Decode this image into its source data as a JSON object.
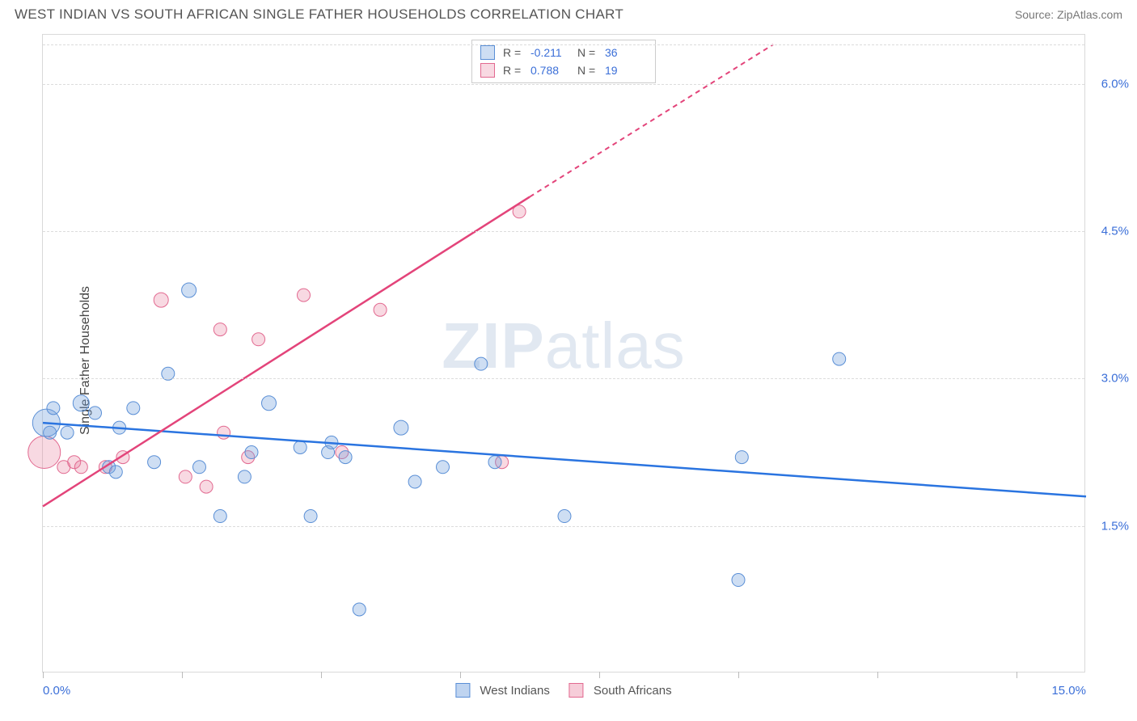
{
  "header": {
    "title": "WEST INDIAN VS SOUTH AFRICAN SINGLE FATHER HOUSEHOLDS CORRELATION CHART",
    "source": "Source: ZipAtlas.com"
  },
  "ylabel": "Single Father Households",
  "watermark": {
    "bold": "ZIP",
    "light": "atlas"
  },
  "chart": {
    "type": "scatter-regression",
    "xlim": [
      0,
      15
    ],
    "ylim": [
      0,
      6.5
    ],
    "xtick_positions": [
      0,
      2,
      4,
      6,
      8,
      10,
      12,
      14
    ],
    "xtick_labels": {
      "0": "0.0%",
      "15": "15.0%"
    },
    "ytick_values": [
      1.5,
      3.0,
      4.5,
      6.0
    ],
    "ytick_labels": [
      "1.5%",
      "3.0%",
      "4.5%",
      "6.0%"
    ],
    "grid_color": "#dcdcdc",
    "background_color": "#ffffff",
    "series": [
      {
        "name": "West Indians",
        "color_fill": "rgba(114,160,222,0.35)",
        "color_stroke": "#5a8fd6",
        "line_color": "#2a74e0",
        "R": "-0.211",
        "N": "36",
        "regression": {
          "x1": 0,
          "y1": 2.55,
          "x2": 15,
          "y2": 1.8
        },
        "points": [
          {
            "x": 0.05,
            "y": 2.55,
            "r": 17
          },
          {
            "x": 0.1,
            "y": 2.45,
            "r": 8
          },
          {
            "x": 0.15,
            "y": 2.7,
            "r": 8
          },
          {
            "x": 0.35,
            "y": 2.45,
            "r": 8
          },
          {
            "x": 0.55,
            "y": 2.75,
            "r": 10
          },
          {
            "x": 0.75,
            "y": 2.65,
            "r": 8
          },
          {
            "x": 0.95,
            "y": 2.1,
            "r": 8
          },
          {
            "x": 1.05,
            "y": 2.05,
            "r": 8
          },
          {
            "x": 1.1,
            "y": 2.5,
            "r": 8
          },
          {
            "x": 1.3,
            "y": 2.7,
            "r": 8
          },
          {
            "x": 1.6,
            "y": 2.15,
            "r": 8
          },
          {
            "x": 1.8,
            "y": 3.05,
            "r": 8
          },
          {
            "x": 2.1,
            "y": 3.9,
            "r": 9
          },
          {
            "x": 2.25,
            "y": 2.1,
            "r": 8
          },
          {
            "x": 2.55,
            "y": 1.6,
            "r": 8
          },
          {
            "x": 2.9,
            "y": 2.0,
            "r": 8
          },
          {
            "x": 3.0,
            "y": 2.25,
            "r": 8
          },
          {
            "x": 3.25,
            "y": 2.75,
            "r": 9
          },
          {
            "x": 3.7,
            "y": 2.3,
            "r": 8
          },
          {
            "x": 3.85,
            "y": 1.6,
            "r": 8
          },
          {
            "x": 4.1,
            "y": 2.25,
            "r": 8
          },
          {
            "x": 4.15,
            "y": 2.35,
            "r": 8
          },
          {
            "x": 4.35,
            "y": 2.2,
            "r": 8
          },
          {
            "x": 4.55,
            "y": 0.65,
            "r": 8
          },
          {
            "x": 5.15,
            "y": 2.5,
            "r": 9
          },
          {
            "x": 5.35,
            "y": 1.95,
            "r": 8
          },
          {
            "x": 5.75,
            "y": 2.1,
            "r": 8
          },
          {
            "x": 6.3,
            "y": 3.15,
            "r": 8
          },
          {
            "x": 6.5,
            "y": 2.15,
            "r": 8
          },
          {
            "x": 7.5,
            "y": 1.6,
            "r": 8
          },
          {
            "x": 10.05,
            "y": 2.2,
            "r": 8
          },
          {
            "x": 10.0,
            "y": 0.95,
            "r": 8
          },
          {
            "x": 11.45,
            "y": 3.2,
            "r": 8
          }
        ]
      },
      {
        "name": "South Africans",
        "color_fill": "rgba(232,130,160,0.30)",
        "color_stroke": "#e26990",
        "line_color": "#e3447a",
        "R": "0.788",
        "N": "19",
        "regression": {
          "x1": 0,
          "y1": 1.7,
          "x2": 7.0,
          "y2": 4.85
        },
        "regression_dashed": {
          "x1": 7.0,
          "y1": 4.85,
          "x2": 10.5,
          "y2": 6.4
        },
        "points": [
          {
            "x": 0.02,
            "y": 2.25,
            "r": 20
          },
          {
            "x": 0.3,
            "y": 2.1,
            "r": 8
          },
          {
            "x": 0.45,
            "y": 2.15,
            "r": 8
          },
          {
            "x": 0.55,
            "y": 2.1,
            "r": 8
          },
          {
            "x": 0.9,
            "y": 2.1,
            "r": 8
          },
          {
            "x": 1.15,
            "y": 2.2,
            "r": 8
          },
          {
            "x": 1.7,
            "y": 3.8,
            "r": 9
          },
          {
            "x": 2.05,
            "y": 2.0,
            "r": 8
          },
          {
            "x": 2.35,
            "y": 1.9,
            "r": 8
          },
          {
            "x": 2.55,
            "y": 3.5,
            "r": 8
          },
          {
            "x": 2.6,
            "y": 2.45,
            "r": 8
          },
          {
            "x": 2.95,
            "y": 2.2,
            "r": 8
          },
          {
            "x": 3.1,
            "y": 3.4,
            "r": 8
          },
          {
            "x": 3.75,
            "y": 3.85,
            "r": 8
          },
          {
            "x": 4.3,
            "y": 2.25,
            "r": 8
          },
          {
            "x": 4.85,
            "y": 3.7,
            "r": 8
          },
          {
            "x": 6.6,
            "y": 2.15,
            "r": 8
          },
          {
            "x": 6.85,
            "y": 4.7,
            "r": 8
          }
        ]
      }
    ]
  },
  "legend_bottom": [
    {
      "label": "West Indians",
      "fill": "rgba(114,160,222,0.45)",
      "stroke": "#5a8fd6"
    },
    {
      "label": "South Africans",
      "fill": "rgba(232,130,160,0.40)",
      "stroke": "#e26990"
    }
  ]
}
